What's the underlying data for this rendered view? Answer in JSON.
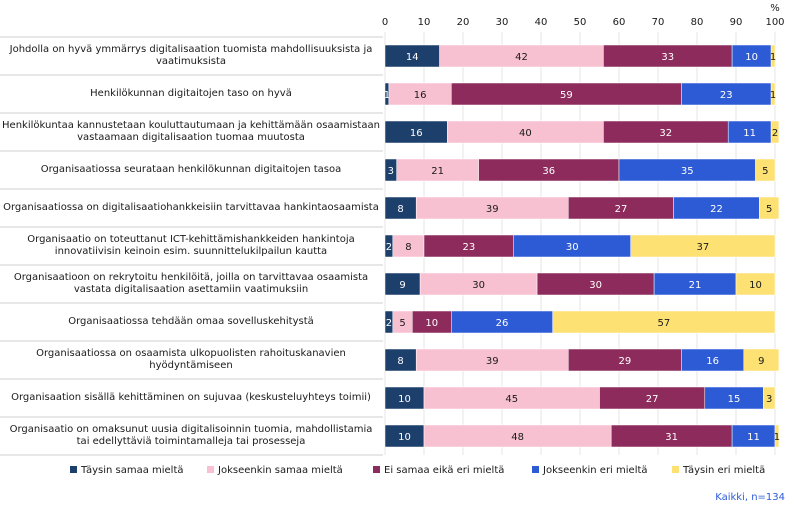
{
  "chart_data": {
    "type": "stacked-barh",
    "x_label": "%",
    "categories": [
      "Johdolla on hyvä ymmärrys digitalisaation tuomista mahdollisuuksista ja vaatimuksista",
      "Henkilökunnan digitaitojen taso on hyvä",
      "Henkilökuntaa kannustetaan kouluttautumaan ja kehittämään osaamistaan vastaamaan digitalisaation tuomaa muutosta",
      "Organisaatiossa seurataan henkilökunnan digitaitojen tasoa",
      "Organisaatiossa on digitalisaatiohankkeisiin tarvittavaa hankintaosaamista",
      "Organisaatio on toteuttanut  ICT-kehittämishankkeiden hankintoja innovatiivisin keinoin esim. suunnittelukilpailun kautta",
      "Organisaatioon on rekrytoitu henkilöitä, joilla on tarvittavaa osaamista vastata digitalisaation asettamiin vaatimuksiin",
      "Organisaatiossa tehdään omaa sovelluskehitystä",
      "Organisaatiossa on osaamista ulkopuolisten rahoituskanavien hyödyntämiseen",
      "Organisaation sisällä kehittäminen on sujuvaa (keskusteluyhteys toimii)",
      "Organisaatio on omaksunut uusia digitalisoinnin tuomia, mahdollistamia tai edellyttäviä toimintamalleja tai prosesseja"
    ],
    "series": [
      {
        "name": "Täysin samaa mieltä",
        "color": "#1c3f6b",
        "values": [
          14,
          1,
          16,
          3,
          8,
          2,
          9,
          2,
          8,
          10,
          10
        ]
      },
      {
        "name": "Jokseenkin samaa mieltä",
        "color": "#f8c1d2",
        "values": [
          42,
          16,
          40,
          21,
          39,
          8,
          30,
          5,
          39,
          45,
          48
        ]
      },
      {
        "name": "Ei samaa eikä eri mieltä",
        "color": "#8c2b5c",
        "values": [
          33,
          59,
          32,
          36,
          27,
          23,
          30,
          10,
          29,
          27,
          31
        ]
      },
      {
        "name": "Jokseenkin eri mieltä",
        "color": "#2d5bd6",
        "values": [
          10,
          23,
          11,
          35,
          22,
          30,
          21,
          26,
          16,
          15,
          11
        ]
      },
      {
        "name": "Täysin eri mieltä",
        "color": "#fde173",
        "values": [
          1,
          1,
          2,
          5,
          5,
          37,
          10,
          57,
          9,
          3,
          1
        ]
      }
    ],
    "xlim": [
      0,
      100
    ],
    "xticks": [
      0,
      10,
      20,
      30,
      40,
      50,
      60,
      70,
      80,
      90,
      100
    ],
    "grid": true,
    "note": "Kaikki, n=134"
  }
}
